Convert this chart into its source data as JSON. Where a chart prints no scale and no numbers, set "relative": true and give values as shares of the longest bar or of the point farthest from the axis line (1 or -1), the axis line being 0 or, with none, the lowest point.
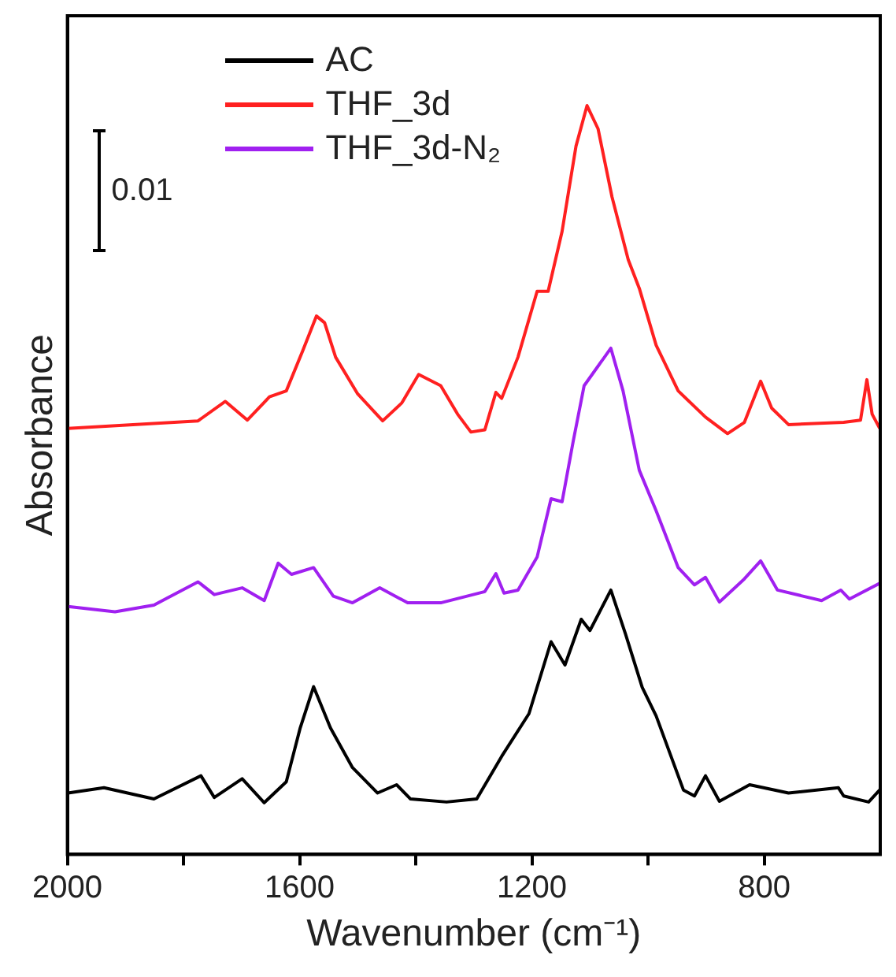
{
  "chart_data": {
    "type": "line",
    "relative": true,
    "xlabel": "Wavenumber (cm⁻¹)",
    "ylabel": "Absorbance",
    "xlim": [
      2000,
      600
    ],
    "xticks": [
      2000,
      {
        "value": 1800,
        "label": null
      },
      1600,
      {
        "value": 1400,
        "label": null
      },
      1200,
      {
        "value": 1000,
        "label": null
      },
      800
    ],
    "grid": false,
    "legend": "top left",
    "marker": "none",
    "line_style": "solid",
    "annotations": [
      "0.01"
    ],
    "series": [
      {
        "name": "AC",
        "color": "#000000",
        "x": [
          1999,
          1937,
          1851,
          1770,
          1747,
          1699,
          1661,
          1623,
          1599,
          1576,
          1547,
          1509,
          1466,
          1433,
          1409,
          1347,
          1295,
          1252,
          1205,
          1167,
          1143,
          1115,
          1100,
          1064,
          1039,
          1010,
          986,
          939,
          920,
          901,
          877,
          825,
          758,
          672,
          663,
          620,
          601
        ],
        "values": [
          0.082,
          0.089,
          0.074,
          0.105,
          0.076,
          0.101,
          0.069,
          0.097,
          0.169,
          0.224,
          0.169,
          0.116,
          0.082,
          0.093,
          0.074,
          0.07,
          0.074,
          0.131,
          0.188,
          0.284,
          0.253,
          0.314,
          0.299,
          0.353,
          0.295,
          0.223,
          0.185,
          0.086,
          0.078,
          0.105,
          0.071,
          0.093,
          0.082,
          0.089,
          0.078,
          0.07,
          0.086
        ]
      },
      {
        "name": "THF_3d",
        "color": "#ff2020",
        "x": [
          1999,
          1775,
          1728,
          1690,
          1652,
          1623,
          1595,
          1571,
          1557,
          1538,
          1500,
          1457,
          1424,
          1395,
          1357,
          1328,
          1305,
          1281,
          1262,
          1252,
          1224,
          1191,
          1172,
          1148,
          1124,
          1105,
          1086,
          1062,
          1034,
          1015,
          986,
          948,
          901,
          863,
          834,
          806,
          787,
          758,
          663,
          634,
          623,
          614,
          601
        ],
        "values": [
          0.569,
          0.579,
          0.605,
          0.58,
          0.611,
          0.619,
          0.672,
          0.719,
          0.71,
          0.664,
          0.615,
          0.579,
          0.603,
          0.641,
          0.626,
          0.588,
          0.564,
          0.567,
          0.617,
          0.609,
          0.664,
          0.752,
          0.752,
          0.832,
          0.946,
          1,
          0.969,
          0.878,
          0.794,
          0.756,
          0.68,
          0.619,
          0.584,
          0.562,
          0.577,
          0.632,
          0.596,
          0.574,
          0.577,
          0.58,
          0.634,
          0.588,
          0.569
        ]
      },
      {
        "name": "THF_3d-N₂",
        "color": "#a020f0",
        "x": [
          1999,
          1918,
          1851,
          1775,
          1747,
          1699,
          1661,
          1637,
          1614,
          1576,
          1542,
          1509,
          1462,
          1414,
          1357,
          1281,
          1262,
          1248,
          1224,
          1191,
          1167,
          1148,
          1129,
          1110,
          1064,
          1043,
          1015,
          986,
          948,
          920,
          901,
          877,
          834,
          806,
          777,
          701,
          668,
          653,
          601
        ],
        "values": [
          0.331,
          0.324,
          0.333,
          0.364,
          0.347,
          0.356,
          0.339,
          0.389,
          0.374,
          0.383,
          0.345,
          0.336,
          0.356,
          0.336,
          0.336,
          0.351,
          0.375,
          0.349,
          0.353,
          0.397,
          0.475,
          0.471,
          0.551,
          0.626,
          0.676,
          0.619,
          0.513,
          0.459,
          0.383,
          0.36,
          0.37,
          0.337,
          0.368,
          0.392,
          0.353,
          0.339,
          0.353,
          0.341,
          0.362
        ]
      }
    ]
  }
}
